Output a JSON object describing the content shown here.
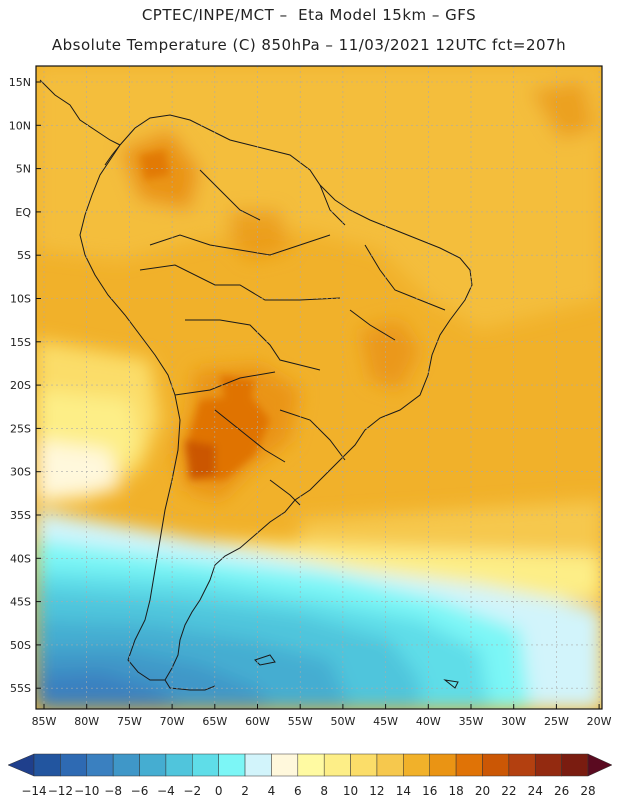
{
  "header": {
    "line1": "CPTEC/INPE/MCT –  Eta Model 15km – GFS",
    "line2": "Absolute Temperature (C) 850hPa – 11/03/2021 12UTC fct=207h"
  },
  "map": {
    "lat_labels": [
      "15N",
      "10N",
      "5N",
      "EQ",
      "5S",
      "10S",
      "15S",
      "20S",
      "25S",
      "30S",
      "35S",
      "40S",
      "45S",
      "50S",
      "55S"
    ],
    "lon_labels": [
      "85W",
      "80W",
      "75W",
      "70W",
      "65W",
      "60W",
      "55W",
      "50W",
      "45W",
      "40W",
      "35W",
      "30W",
      "25W",
      "20W"
    ]
  },
  "colorbar": {
    "labels": [
      "-14",
      "-12",
      "-10",
      "-8",
      "-6",
      "-4",
      "-2",
      "0",
      "2",
      "4",
      "6",
      "8",
      "10",
      "12",
      "14",
      "16",
      "18",
      "20",
      "22",
      "24",
      "26",
      "28"
    ],
    "colors": [
      "#1f3f8c",
      "#22559f",
      "#2e6ab3",
      "#3a80c0",
      "#3f97c8",
      "#45add1",
      "#50c5dc",
      "#5fdde8",
      "#7cf6f6",
      "#d2f4fb",
      "#fff8dc",
      "#fffaa2",
      "#fdee87",
      "#fbdd69",
      "#f6c84d",
      "#f1b12a",
      "#ea9414",
      "#e07306",
      "#cb5705",
      "#b34010",
      "#932a10",
      "#7a1c10",
      "#5a0a20"
    ]
  }
}
